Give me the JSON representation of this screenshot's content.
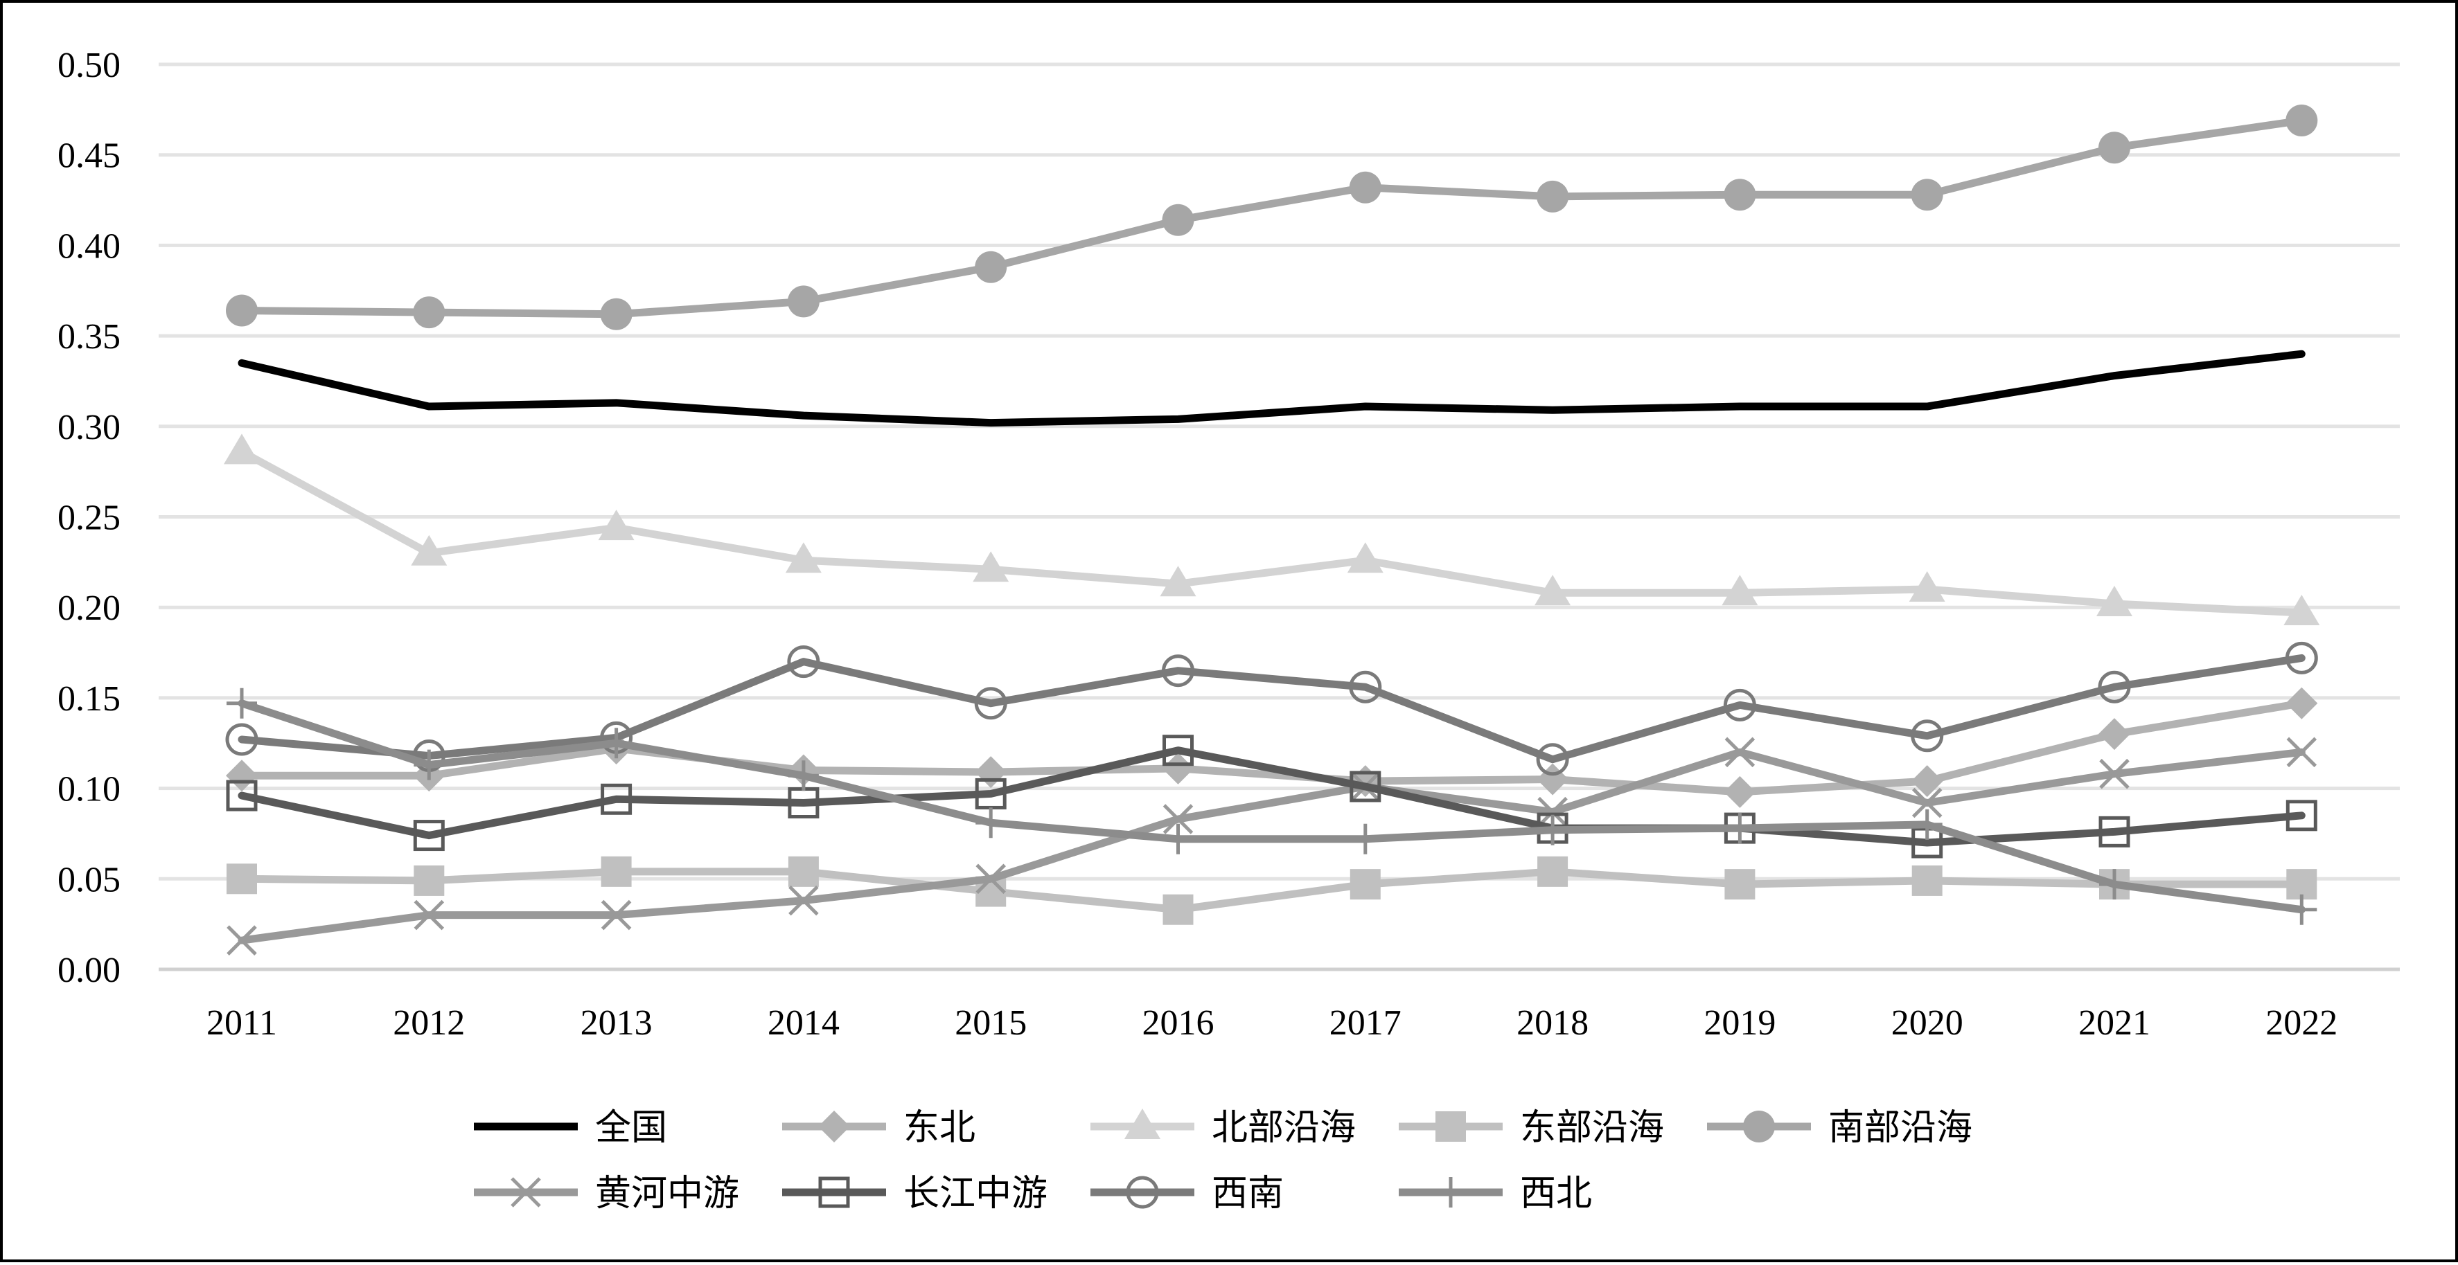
{
  "chart_data": {
    "type": "line",
    "title": "",
    "xlabel": "",
    "ylabel": "",
    "categories": [
      "2011",
      "2012",
      "2013",
      "2014",
      "2015",
      "2016",
      "2017",
      "2018",
      "2019",
      "2020",
      "2021",
      "2022"
    ],
    "ylim": [
      0,
      0.5
    ],
    "yticks": [
      "0.00",
      "0.05",
      "0.10",
      "0.15",
      "0.20",
      "0.25",
      "0.30",
      "0.35",
      "0.40",
      "0.45",
      "0.50"
    ],
    "grid": true,
    "legend_position": "bottom",
    "series": [
      {
        "name": "全国",
        "color": "#000000",
        "marker": "none",
        "values": [
          0.335,
          0.311,
          0.313,
          0.306,
          0.302,
          0.304,
          0.311,
          0.309,
          0.311,
          0.311,
          0.328,
          0.34
        ]
      },
      {
        "name": "东北",
        "color": "#b2b2b2",
        "marker": "diamond",
        "values": [
          0.107,
          0.107,
          0.122,
          0.11,
          0.109,
          0.111,
          0.104,
          0.105,
          0.098,
          0.104,
          0.13,
          0.147
        ]
      },
      {
        "name": "北部沿海",
        "color": "#d3d3d3",
        "marker": "triangle",
        "values": [
          0.286,
          0.23,
          0.244,
          0.226,
          0.221,
          0.213,
          0.226,
          0.208,
          0.208,
          0.21,
          0.202,
          0.197
        ]
      },
      {
        "name": "东部沿海",
        "color": "#c0c0c0",
        "marker": "square",
        "values": [
          0.05,
          0.049,
          0.054,
          0.054,
          0.043,
          0.033,
          0.047,
          0.054,
          0.047,
          0.049,
          0.047,
          0.047
        ]
      },
      {
        "name": "南部沿海",
        "color": "#a6a6a6",
        "marker": "circle",
        "values": [
          0.364,
          0.363,
          0.362,
          0.369,
          0.388,
          0.414,
          0.432,
          0.427,
          0.428,
          0.428,
          0.454,
          0.469
        ]
      },
      {
        "name": "黄河中游",
        "color": "#999999",
        "marker": "x",
        "values": [
          0.016,
          0.03,
          0.03,
          0.038,
          0.05,
          0.083,
          0.101,
          0.087,
          0.12,
          0.092,
          0.108,
          0.12
        ]
      },
      {
        "name": "长江中游",
        "color": "#595959",
        "marker": "open-square",
        "values": [
          0.096,
          0.074,
          0.094,
          0.092,
          0.097,
          0.121,
          0.101,
          0.078,
          0.078,
          0.07,
          0.076,
          0.085
        ]
      },
      {
        "name": "西南",
        "color": "#7a7a7a",
        "marker": "open-circle",
        "values": [
          0.127,
          0.118,
          0.128,
          0.17,
          0.147,
          0.165,
          0.156,
          0.116,
          0.146,
          0.129,
          0.156,
          0.172
        ]
      },
      {
        "name": "西北",
        "color": "#8c8c8c",
        "marker": "plus",
        "values": [
          0.147,
          0.113,
          0.125,
          0.107,
          0.081,
          0.072,
          0.072,
          0.077,
          0.078,
          0.08,
          0.047,
          0.033
        ]
      }
    ]
  }
}
